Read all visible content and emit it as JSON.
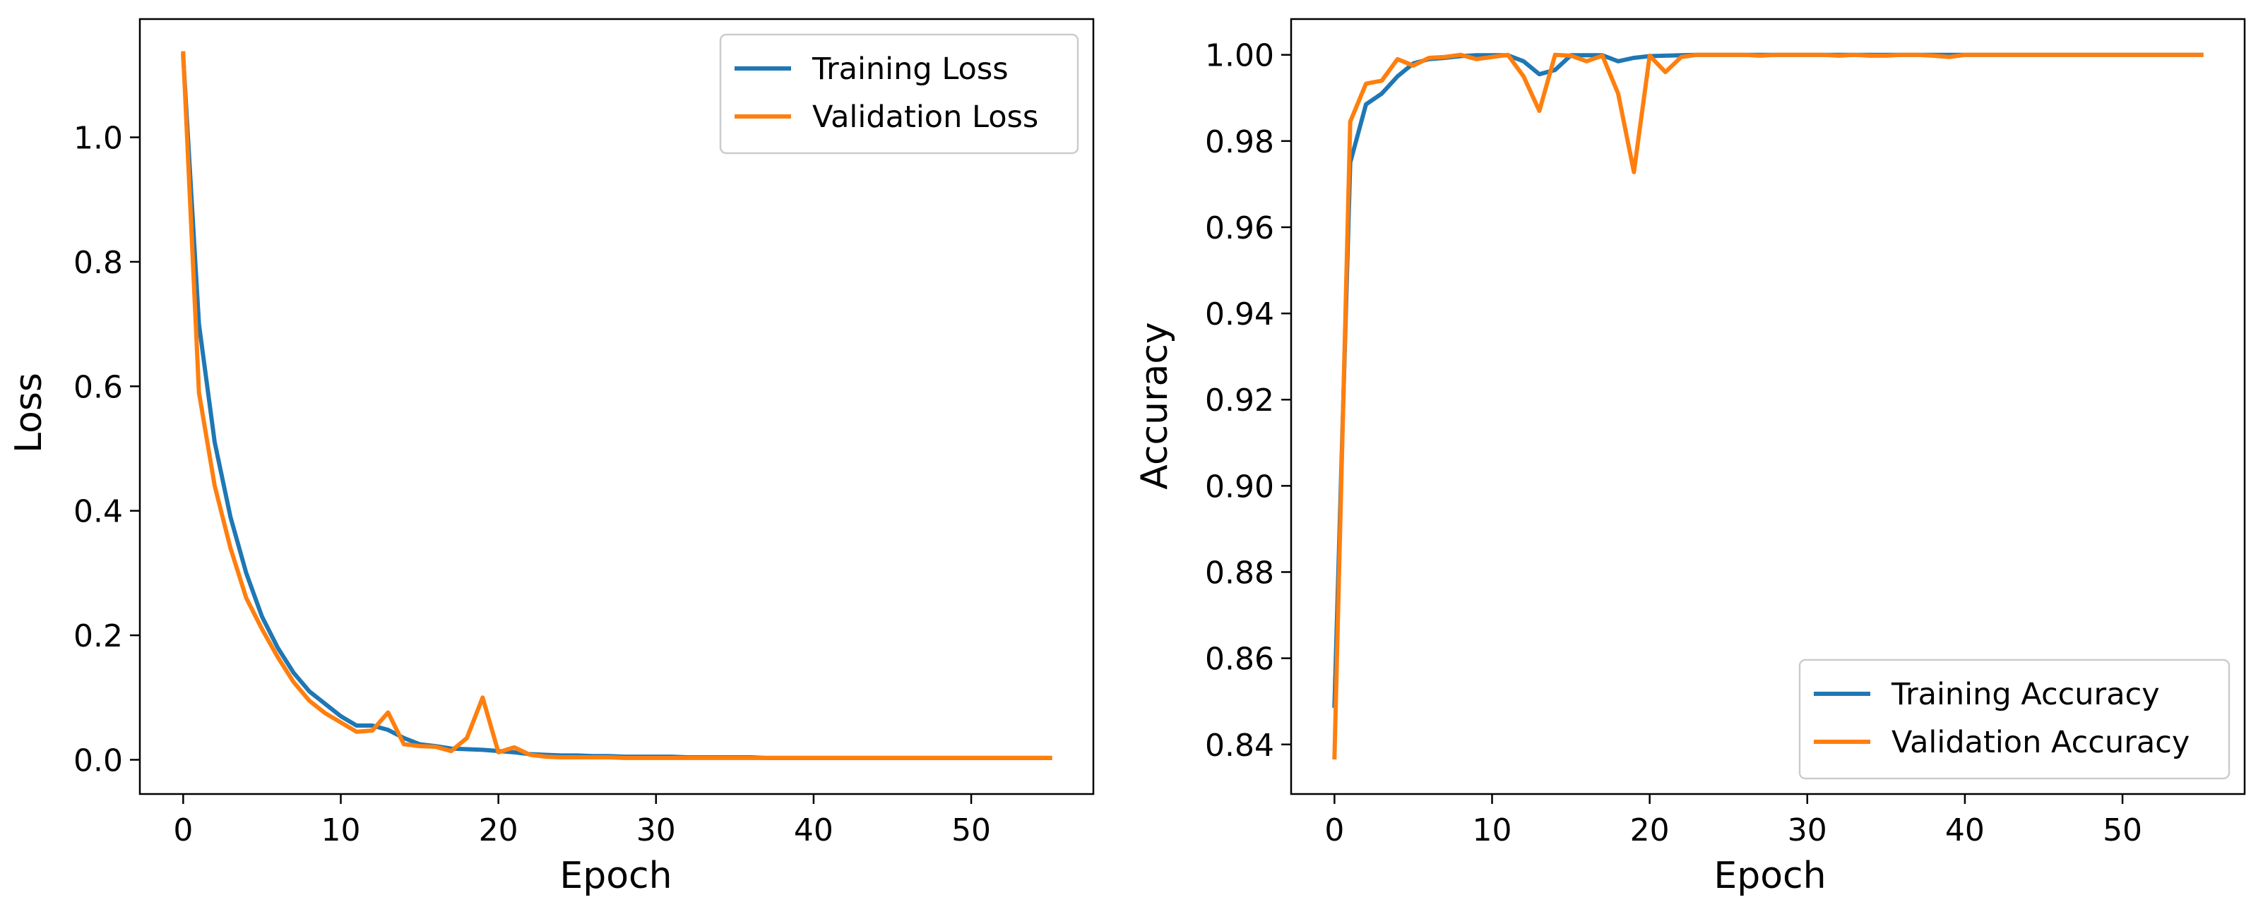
{
  "chart_data": [
    {
      "type": "line",
      "title": "",
      "xlabel": "Epoch",
      "ylabel": "Loss",
      "xlim": [
        -2.75,
        57.75
      ],
      "ylim": [
        -0.055,
        1.19
      ],
      "xticks": [
        0,
        10,
        20,
        30,
        40,
        50
      ],
      "yticks": [
        0.0,
        0.2,
        0.4,
        0.6,
        0.8,
        1.0
      ],
      "ytick_decimals": 1,
      "grid": false,
      "legend_position": "upper right",
      "series": [
        {
          "name": "Training Loss",
          "color": "#1f77b4",
          "x": [
            0,
            1,
            2,
            3,
            4,
            5,
            6,
            7,
            8,
            9,
            10,
            11,
            12,
            13,
            14,
            15,
            16,
            17,
            18,
            19,
            20,
            21,
            22,
            23,
            24,
            25,
            26,
            27,
            28,
            29,
            30,
            31,
            32,
            33,
            34,
            35,
            36,
            37,
            38,
            39,
            40,
            41,
            42,
            43,
            44,
            45,
            46,
            47,
            48,
            49,
            50,
            51,
            52,
            53,
            54,
            55
          ],
          "values": [
            1.13,
            0.7,
            0.51,
            0.39,
            0.3,
            0.23,
            0.18,
            0.14,
            0.11,
            0.09,
            0.07,
            0.055,
            0.055,
            0.048,
            0.035,
            0.025,
            0.022,
            0.018,
            0.017,
            0.016,
            0.014,
            0.012,
            0.009,
            0.008,
            0.007,
            0.007,
            0.006,
            0.006,
            0.005,
            0.005,
            0.005,
            0.005,
            0.004,
            0.004,
            0.004,
            0.004,
            0.004,
            0.003,
            0.003,
            0.003,
            0.003,
            0.003,
            0.003,
            0.003,
            0.003,
            0.003,
            0.003,
            0.003,
            0.003,
            0.003,
            0.003,
            0.003,
            0.003,
            0.003,
            0.003,
            0.003
          ]
        },
        {
          "name": "Validation Loss",
          "color": "#ff7f0e",
          "x": [
            0,
            1,
            2,
            3,
            4,
            5,
            6,
            7,
            8,
            9,
            10,
            11,
            12,
            13,
            14,
            15,
            16,
            17,
            18,
            19,
            20,
            21,
            22,
            23,
            24,
            25,
            26,
            27,
            28,
            29,
            30,
            31,
            32,
            33,
            34,
            35,
            36,
            37,
            38,
            39,
            40,
            41,
            42,
            43,
            44,
            45,
            46,
            47,
            48,
            49,
            50,
            51,
            52,
            53,
            54,
            55
          ],
          "values": [
            1.135,
            0.59,
            0.44,
            0.34,
            0.26,
            0.21,
            0.165,
            0.125,
            0.095,
            0.075,
            0.06,
            0.045,
            0.047,
            0.076,
            0.025,
            0.022,
            0.021,
            0.014,
            0.035,
            0.1,
            0.012,
            0.02,
            0.008,
            0.005,
            0.004,
            0.004,
            0.004,
            0.004,
            0.003,
            0.003,
            0.003,
            0.003,
            0.003,
            0.003,
            0.003,
            0.003,
            0.003,
            0.003,
            0.003,
            0.003,
            0.003,
            0.003,
            0.003,
            0.003,
            0.003,
            0.003,
            0.003,
            0.003,
            0.003,
            0.003,
            0.003,
            0.003,
            0.003,
            0.003,
            0.003,
            0.003
          ]
        }
      ]
    },
    {
      "type": "line",
      "title": "",
      "xlabel": "Epoch",
      "ylabel": "Accuracy",
      "xlim": [
        -2.75,
        57.75
      ],
      "ylim": [
        0.8285,
        1.0083
      ],
      "xticks": [
        0,
        10,
        20,
        30,
        40,
        50
      ],
      "yticks": [
        0.84,
        0.86,
        0.88,
        0.9,
        0.92,
        0.94,
        0.96,
        0.98,
        1.0
      ],
      "ytick_decimals": 2,
      "grid": false,
      "legend_position": "lower right",
      "series": [
        {
          "name": "Training Accuracy",
          "color": "#1f77b4",
          "x": [
            0,
            1,
            2,
            3,
            4,
            5,
            6,
            7,
            8,
            9,
            10,
            11,
            12,
            13,
            14,
            15,
            16,
            17,
            18,
            19,
            20,
            21,
            22,
            23,
            24,
            25,
            26,
            27,
            28,
            29,
            30,
            31,
            32,
            33,
            34,
            35,
            36,
            37,
            38,
            39,
            40,
            41,
            42,
            43,
            44,
            45,
            46,
            47,
            48,
            49,
            50,
            51,
            52,
            53,
            54,
            55
          ],
          "values": [
            0.849,
            0.975,
            0.9885,
            0.991,
            0.995,
            0.998,
            0.999,
            0.9993,
            0.9997,
            0.9999,
            0.9999,
            0.9999,
            0.9985,
            0.9955,
            0.9965,
            0.9999,
            0.9999,
            0.9999,
            0.9985,
            0.9993,
            0.9997,
            0.9998,
            0.9999,
            1.0,
            1.0,
            1.0,
            1.0,
            1.0,
            1.0,
            1.0,
            1.0,
            1.0,
            1.0,
            1.0,
            1.0,
            1.0,
            1.0,
            1.0,
            1.0,
            1.0,
            1.0,
            1.0,
            1.0,
            1.0,
            1.0,
            1.0,
            1.0,
            1.0,
            1.0,
            1.0,
            1.0,
            1.0,
            1.0,
            1.0,
            1.0,
            1.0
          ]
        },
        {
          "name": "Validation Accuracy",
          "color": "#ff7f0e",
          "x": [
            0,
            1,
            2,
            3,
            4,
            5,
            6,
            7,
            8,
            9,
            10,
            11,
            12,
            13,
            14,
            15,
            16,
            17,
            18,
            19,
            20,
            21,
            22,
            23,
            24,
            25,
            26,
            27,
            28,
            29,
            30,
            31,
            32,
            33,
            34,
            35,
            36,
            37,
            38,
            39,
            40,
            41,
            42,
            43,
            44,
            45,
            46,
            47,
            48,
            49,
            50,
            51,
            52,
            53,
            54,
            55
          ],
          "values": [
            0.837,
            0.9845,
            0.9933,
            0.994,
            0.999,
            0.9975,
            0.9993,
            0.9995,
            1.0,
            0.999,
            0.9995,
            1.0,
            0.995,
            0.987,
            1.0,
            0.9998,
            0.9985,
            0.9998,
            0.991,
            0.9728,
            0.9998,
            0.996,
            0.9995,
            1.0,
            1.0,
            1.0,
            1.0,
            0.9998,
            1.0,
            1.0,
            1.0,
            1.0,
            0.9998,
            1.0,
            0.9998,
            0.9998,
            1.0,
            1.0,
            0.9998,
            0.9995,
            1.0,
            1.0,
            1.0,
            1.0,
            1.0,
            1.0,
            1.0,
            1.0,
            1.0,
            1.0,
            1.0,
            1.0,
            1.0,
            1.0,
            1.0,
            1.0
          ]
        }
      ]
    }
  ]
}
